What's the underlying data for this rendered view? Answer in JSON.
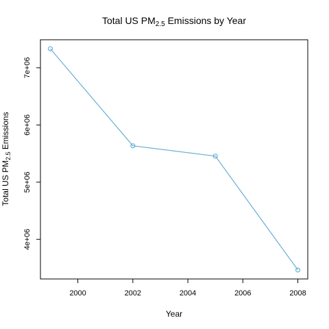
{
  "chart_data": {
    "type": "line",
    "title": {
      "prefix": "Total US  PM",
      "subscript": "2.5",
      "suffix": " Emissions by Year"
    },
    "xlabel": "Year",
    "ylabel": {
      "prefix": "Total US  PM",
      "subscript": "2.5",
      "suffix": " Emissions"
    },
    "x": [
      1999,
      2002,
      2005,
      2008
    ],
    "y": [
      7332967,
      5635780,
      5454703,
      3464206
    ],
    "xlim": [
      1998.64,
      2008.36
    ],
    "ylim": [
      3307616,
      7489557
    ],
    "xticks": [
      2000,
      2002,
      2004,
      2006,
      2008
    ],
    "xtick_labels": [
      "2000",
      "2002",
      "2004",
      "2006",
      "2008"
    ],
    "yticks": [
      4000000,
      5000000,
      6000000,
      7000000
    ],
    "ytick_labels": [
      "4e+06",
      "5e+06",
      "6e+06",
      "7e+06"
    ],
    "line_color": "#6aaed6",
    "marker": "open-circle",
    "grid": false,
    "legend": "none"
  }
}
